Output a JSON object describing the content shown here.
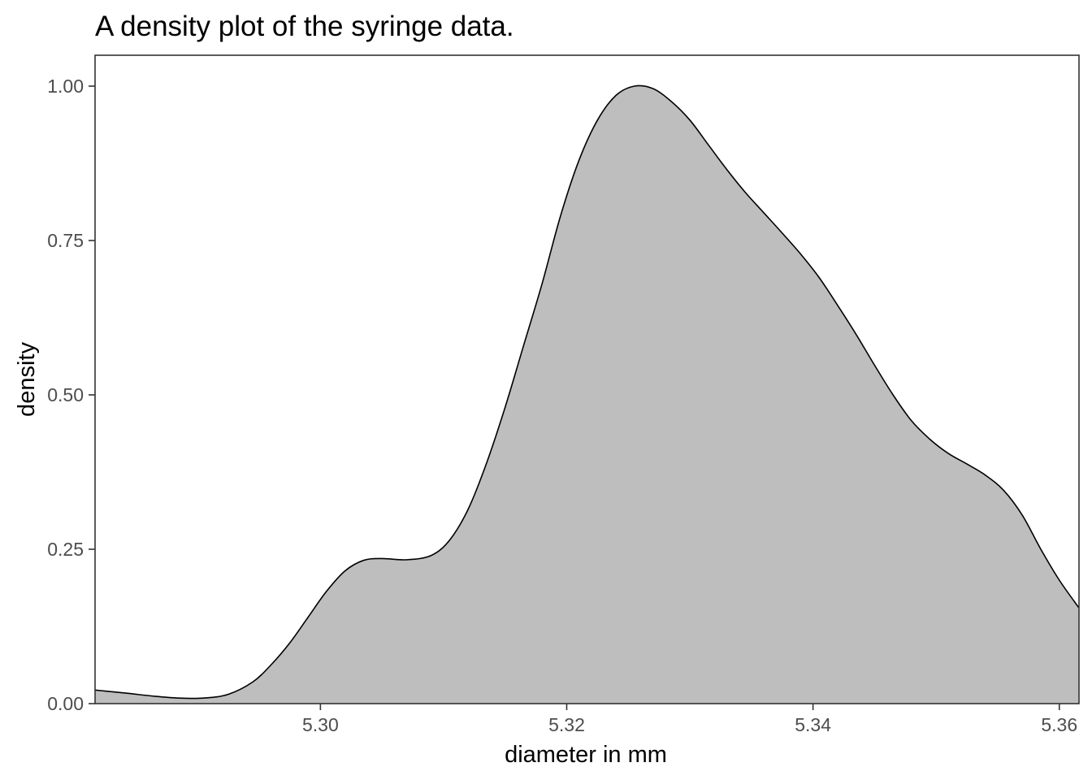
{
  "chart_data": {
    "type": "area",
    "title": "A density plot of the syringe data.",
    "xlabel": "diameter in mm",
    "ylabel": "density",
    "xlim": [
      5.2817,
      5.3616
    ],
    "ylim": [
      0,
      1.05
    ],
    "x_ticks": [
      5.3,
      5.32,
      5.34,
      5.36
    ],
    "x_tick_labels": [
      "5.30",
      "5.32",
      "5.34",
      "5.36"
    ],
    "y_ticks": [
      0,
      0.25,
      0.5,
      0.75,
      1.0
    ],
    "y_tick_labels": [
      "0.00",
      "0.25",
      "0.50",
      "0.75",
      "1.00"
    ],
    "grid": false,
    "legend": "none",
    "fill_color": "#bebebe",
    "line_color": "#000000",
    "series": [
      {
        "x": [
          5.2817,
          5.2842,
          5.2865,
          5.2885,
          5.2905,
          5.2925,
          5.2945,
          5.296,
          5.2975,
          5.299,
          5.3005,
          5.302,
          5.3035,
          5.305,
          5.307,
          5.309,
          5.3105,
          5.312,
          5.3135,
          5.315,
          5.3165,
          5.318,
          5.3195,
          5.321,
          5.3225,
          5.324,
          5.3255,
          5.327,
          5.3285,
          5.33,
          5.3315,
          5.333,
          5.3345,
          5.336,
          5.3375,
          5.339,
          5.3405,
          5.342,
          5.3435,
          5.345,
          5.3465,
          5.348,
          5.3495,
          5.351,
          5.3525,
          5.354,
          5.3555,
          5.357,
          5.3585,
          5.36,
          5.3616
        ],
        "y": [
          0.022,
          0.017,
          0.012,
          0.009,
          0.009,
          0.015,
          0.035,
          0.063,
          0.098,
          0.14,
          0.182,
          0.215,
          0.232,
          0.235,
          0.233,
          0.24,
          0.265,
          0.315,
          0.39,
          0.48,
          0.58,
          0.68,
          0.79,
          0.88,
          0.945,
          0.985,
          1.0,
          0.996,
          0.975,
          0.945,
          0.905,
          0.865,
          0.828,
          0.795,
          0.762,
          0.728,
          0.69,
          0.645,
          0.598,
          0.548,
          0.5,
          0.458,
          0.428,
          0.405,
          0.388,
          0.37,
          0.345,
          0.305,
          0.25,
          0.2,
          0.155
        ]
      }
    ]
  }
}
